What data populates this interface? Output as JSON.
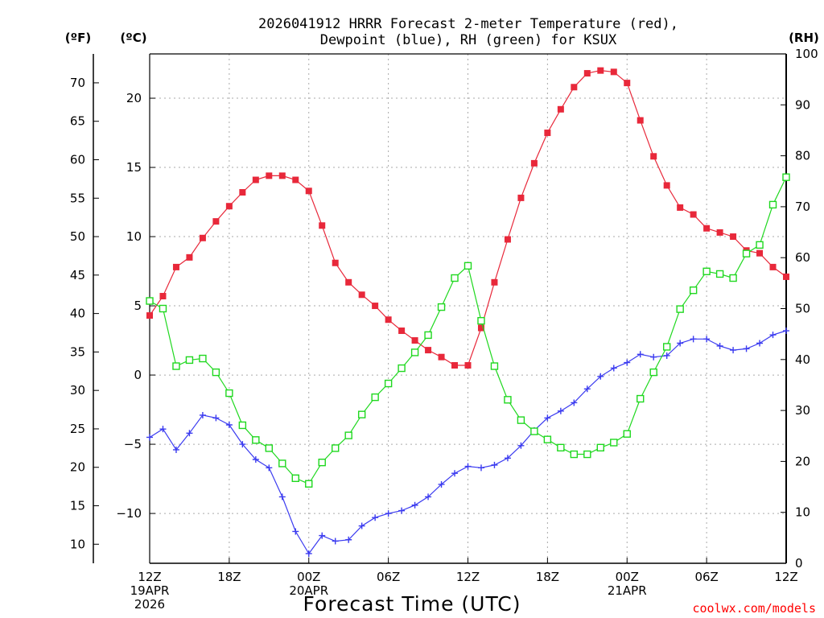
{
  "chart_data": {
    "type": "line",
    "title": [
      "2026041912 HRRR Forecast 2-meter Temperature (red),",
      "Dewpoint (blue), RH (green) for KSUX"
    ],
    "xlabel": "Forecast Time (UTC)",
    "credit": "coolwx.com/models",
    "unit_labels": {
      "fahrenheit": "(ºF)",
      "celsius": "(ºC)",
      "rh": "(RH)"
    },
    "x_ticks": [
      {
        "hour": 0,
        "lines": [
          "12Z",
          "19APR",
          "2026"
        ]
      },
      {
        "hour": 6,
        "lines": [
          "18Z"
        ]
      },
      {
        "hour": 12,
        "lines": [
          "00Z",
          "20APR"
        ]
      },
      {
        "hour": 18,
        "lines": [
          "06Z"
        ]
      },
      {
        "hour": 24,
        "lines": [
          "12Z"
        ]
      },
      {
        "hour": 30,
        "lines": [
          "18Z"
        ]
      },
      {
        "hour": 36,
        "lines": [
          "00Z",
          "21APR"
        ]
      },
      {
        "hour": 42,
        "lines": [
          "06Z"
        ]
      },
      {
        "hour": 48,
        "lines": [
          "12Z"
        ]
      }
    ],
    "xlim": [
      0,
      48
    ],
    "celsius_axis": {
      "ylim": [
        -13.6,
        23.2
      ],
      "ticks": [
        -10,
        -5,
        0,
        5,
        10,
        15,
        20
      ]
    },
    "fahrenheit_axis": {
      "ticks": [
        10,
        15,
        20,
        25,
        30,
        35,
        40,
        45,
        50,
        55,
        60,
        65,
        70
      ]
    },
    "rh_axis": {
      "ylim": [
        0,
        100
      ],
      "ticks": [
        0,
        10,
        20,
        30,
        40,
        50,
        60,
        70,
        80,
        90,
        100
      ]
    },
    "series": [
      {
        "name": "2-meter Temperature",
        "color": "#e8283a",
        "marker": "filled-square",
        "axis": "celsius",
        "values": [
          4.3,
          5.7,
          7.8,
          8.5,
          9.9,
          11.1,
          12.2,
          13.2,
          14.1,
          14.4,
          14.4,
          14.1,
          13.3,
          10.8,
          8.1,
          6.7,
          5.8,
          5.0,
          4.0,
          3.2,
          2.5,
          1.8,
          1.3,
          0.7,
          0.7,
          3.4,
          6.7,
          9.8,
          12.8,
          15.3,
          17.5,
          19.2,
          20.8,
          21.8,
          22.0,
          21.9,
          21.1,
          18.4,
          15.8,
          13.7,
          12.1,
          11.6,
          10.6,
          10.3,
          10.0,
          9.0,
          8.8,
          7.8,
          7.1
        ]
      },
      {
        "name": "Dewpoint",
        "color": "#3b3bf0",
        "marker": "plus",
        "axis": "celsius",
        "values": [
          -4.5,
          -3.9,
          -5.4,
          -4.2,
          -2.9,
          -3.1,
          -3.6,
          -5.0,
          -6.1,
          -6.7,
          -8.8,
          -11.3,
          -12.9,
          -11.6,
          -12.0,
          -11.9,
          -10.9,
          -10.3,
          -10.0,
          -9.8,
          -9.4,
          -8.8,
          -7.9,
          -7.1,
          -6.6,
          -6.7,
          -6.5,
          -6.0,
          -5.1,
          -4.0,
          -3.1,
          -2.6,
          -2.0,
          -1.0,
          -0.1,
          0.5,
          0.9,
          1.5,
          1.3,
          1.4,
          2.3,
          2.6,
          2.6,
          2.1,
          1.8,
          1.9,
          2.3,
          2.9,
          3.2
        ]
      },
      {
        "name": "RH",
        "color": "#1fd81f",
        "marker": "open-square",
        "axis": "rh",
        "values": [
          51.5,
          50,
          38.7,
          39.9,
          40.2,
          37.5,
          33.4,
          27.1,
          24.2,
          22.6,
          19.6,
          16.7,
          15.6,
          19.8,
          22.6,
          25.1,
          29.2,
          32.6,
          35.3,
          38.3,
          41.4,
          44.8,
          50.3,
          56.0,
          58.4,
          47.6,
          38.7,
          32.1,
          28.1,
          25.9,
          24.3,
          22.7,
          21.4,
          21.4,
          22.7,
          23.7,
          25.4,
          32.3,
          37.5,
          42.5,
          49.9,
          53.6,
          57.3,
          56.8,
          56.0,
          60.8,
          62.5,
          70.4,
          75.8
        ]
      }
    ]
  }
}
